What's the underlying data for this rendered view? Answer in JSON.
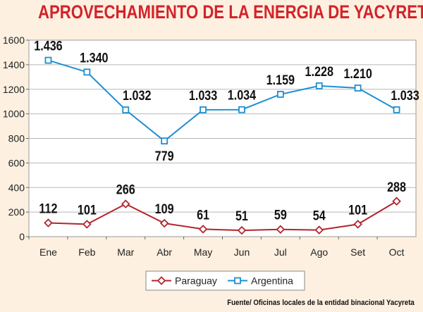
{
  "title": "APROVECHAMIENTO DE LA ENERGIA DE YACYRETA",
  "source": "Fuente/ Oficinas locales de la entidad binacional Yacyreta",
  "colors": {
    "title": "#d3222a",
    "paraguay": "#b3242b",
    "argentina": "#1e8fd2",
    "background": "#fdf0e0",
    "plot_background": "#ffffff"
  },
  "chart_data": {
    "type": "line",
    "title": "APROVECHAMIENTO DE LA ENERGIA DE YACYRETA",
    "xlabel": "",
    "ylabel": "",
    "categories": [
      "Ene",
      "Feb",
      "Mar",
      "Abr",
      "May",
      "Jun",
      "Jul",
      "Ago",
      "Set",
      "Oct"
    ],
    "ylim": [
      0,
      1600
    ],
    "yticks": [
      "0",
      "200",
      "400",
      "600",
      "800",
      "1000",
      "1200",
      "1400",
      "1600"
    ],
    "grid": true,
    "legend_position": "bottom",
    "series": [
      {
        "name": "Paraguay",
        "marker": "diamond",
        "values": [
          112,
          101,
          266,
          109,
          61,
          51,
          59,
          54,
          101,
          288
        ],
        "labels": [
          "112",
          "101",
          "266",
          "109",
          "61",
          "51",
          "59",
          "54",
          "101",
          "288"
        ]
      },
      {
        "name": "Argentina",
        "marker": "square",
        "values": [
          1436,
          1340,
          1032,
          779,
          1033,
          1034,
          1159,
          1228,
          1210,
          1033
        ],
        "labels": [
          "1.436",
          "1.340",
          "1.032",
          "779",
          "1.033",
          "1.034",
          "1.159",
          "1.228",
          "1.210",
          "1.033"
        ]
      }
    ]
  }
}
